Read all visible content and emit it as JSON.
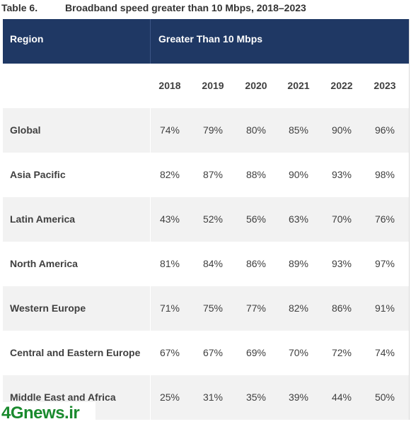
{
  "caption": {
    "number": "Table 6.",
    "title": "Broadband speed greater than 10 Mbps, 2018–2023"
  },
  "table": {
    "header_region": "Region",
    "header_group": "Greater Than 10 Mbps",
    "years": [
      "2018",
      "2019",
      "2020",
      "2021",
      "2022",
      "2023"
    ],
    "rows": [
      {
        "region": "Global",
        "values": [
          "74%",
          "79%",
          "80%",
          "85%",
          "90%",
          "96%"
        ]
      },
      {
        "region": "Asia Pacific",
        "values": [
          "82%",
          "87%",
          "88%",
          "90%",
          "93%",
          "98%"
        ]
      },
      {
        "region": "Latin America",
        "values": [
          "43%",
          "52%",
          "56%",
          "63%",
          "70%",
          "76%"
        ]
      },
      {
        "region": "North America",
        "values": [
          "81%",
          "84%",
          "86%",
          "89%",
          "93%",
          "97%"
        ]
      },
      {
        "region": "Western Europe",
        "values": [
          "71%",
          "75%",
          "77%",
          "82%",
          "86%",
          "91%"
        ]
      },
      {
        "region": "Central and Eastern Europe",
        "values": [
          "67%",
          "67%",
          "69%",
          "70%",
          "72%",
          "74%"
        ]
      },
      {
        "region": "Middle East and Africa",
        "values": [
          "25%",
          "31%",
          "35%",
          "39%",
          "44%",
          "50%"
        ]
      }
    ]
  },
  "watermark": "4Gnews.ir",
  "colors": {
    "header_bg": "#1f3864",
    "row_shade": "#f2f2f2",
    "watermark": "#1a8a2e"
  }
}
